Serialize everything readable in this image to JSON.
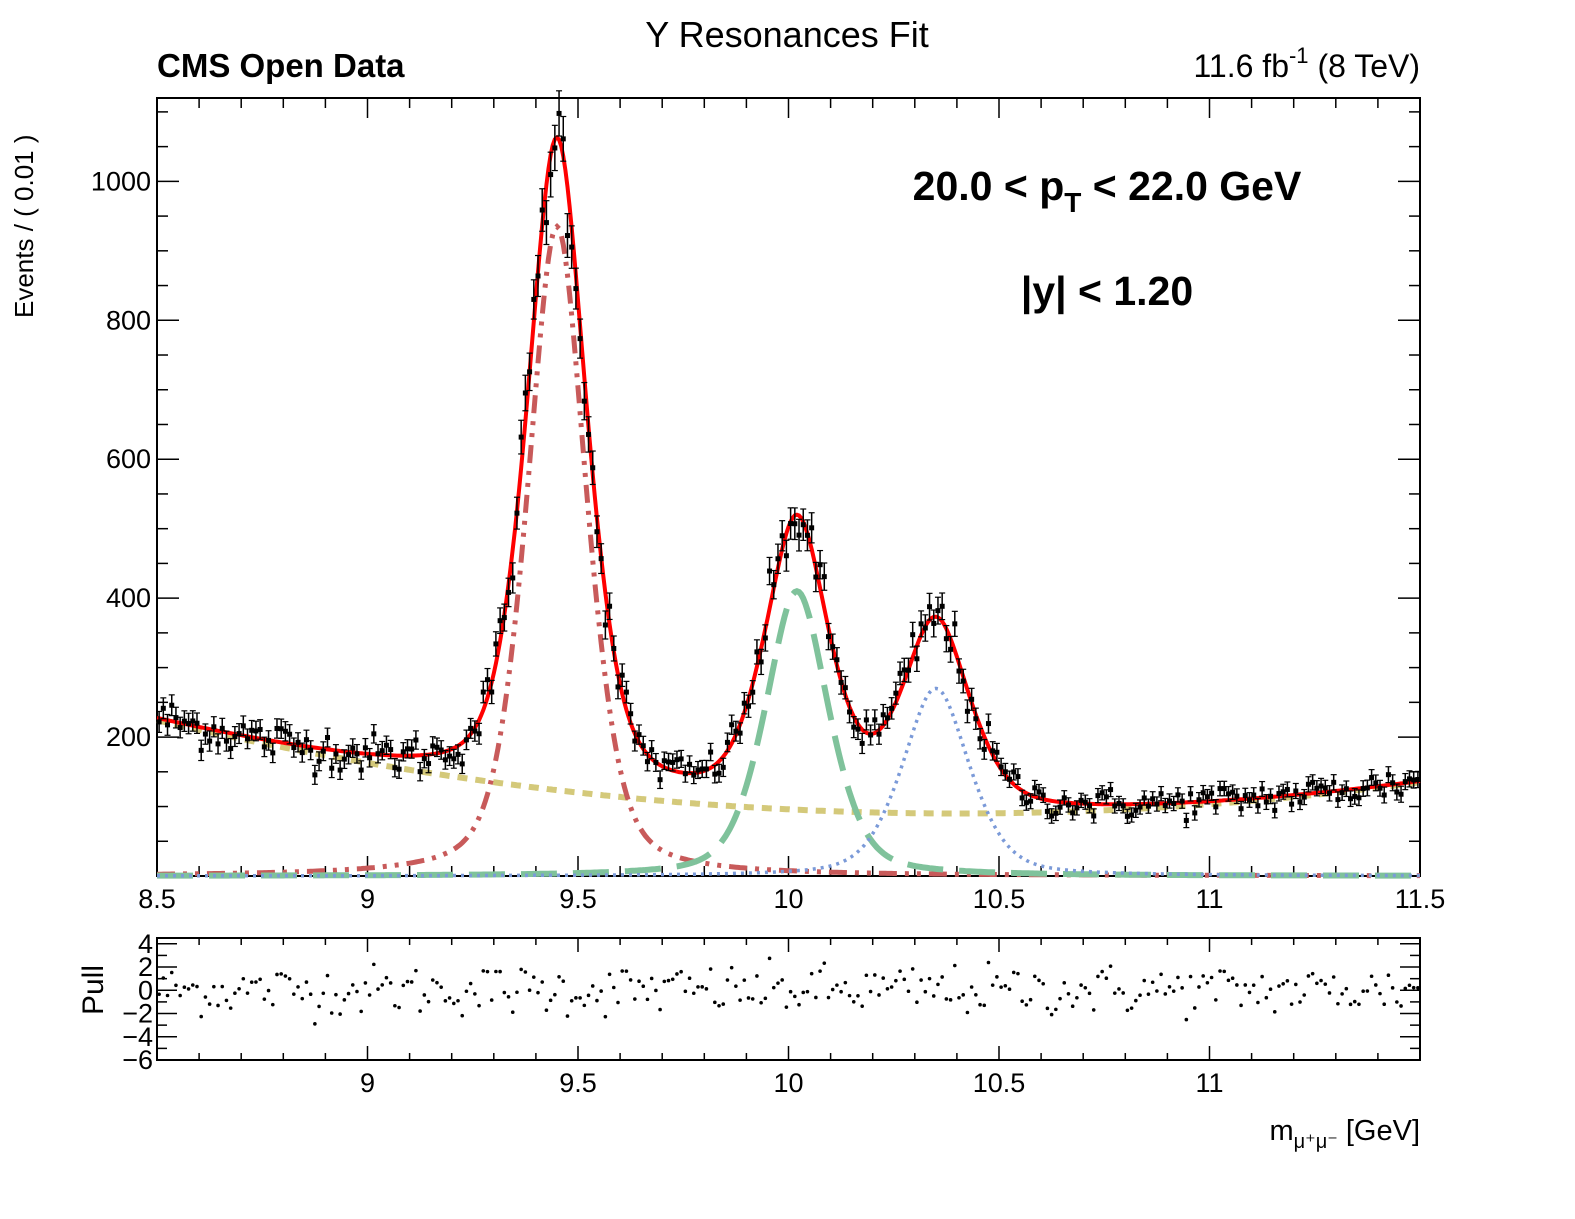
{
  "chart_data": {
    "type": "scatter",
    "title": "Υ Resonances Fit",
    "header_left": "CMS Open Data",
    "header_right": {
      "text": "11.6 fb",
      "sup": "-1",
      "suffix": " (8 TeV)"
    },
    "annotations": {
      "pt": {
        "pre": "20.0 < p",
        "sub": "T",
        "post": " < 22.0 GeV"
      },
      "y": "|y| < 1.20"
    },
    "main_panel": {
      "ylabel": "Events / ( 0.01 )",
      "xlim": [
        8.5,
        11.5
      ],
      "ylim": [
        0,
        1120
      ],
      "x_ticks": [
        "8.5",
        "9",
        "9.5",
        "10",
        "10.5",
        "11",
        "11.5"
      ],
      "y_ticks": [
        "200",
        "400",
        "600",
        "800",
        "1000"
      ],
      "components": [
        {
          "role": "total",
          "color": "#ff0000",
          "style": "solid"
        },
        {
          "role": "peak1",
          "color": "#c85a5a",
          "style": "dash-dot-dot"
        },
        {
          "role": "peak2",
          "color": "#7fc29b",
          "style": "long-dash"
        },
        {
          "role": "peak3",
          "color": "#7b9ad8",
          "style": "dotted"
        },
        {
          "role": "background",
          "color": "#d4c97a",
          "style": "short-dash"
        }
      ],
      "model": {
        "background": {
          "c0": 90,
          "c2": 45
        },
        "peaks": [
          {
            "mean": 9.45,
            "sigma": 0.075,
            "amplitude": 935
          },
          {
            "mean": 10.02,
            "sigma": 0.08,
            "amplitude": 410
          },
          {
            "mean": 10.35,
            "sigma": 0.085,
            "amplitude": 270
          }
        ]
      },
      "data_points_x_range": [
        8.505,
        11.495
      ],
      "data_points_step": 0.01
    },
    "pull_panel": {
      "ylabel": "Pull",
      "ylim": [
        -6,
        4.5
      ],
      "y_ticks": [
        "4",
        "2",
        "0",
        "−2",
        "−4",
        "−6"
      ],
      "x_ticks": [
        "9",
        "9.5",
        "10",
        "10.5",
        "11"
      ],
      "xlabel": {
        "pre": "m",
        "sub": "μ⁺μ⁻",
        "post": " [GeV]"
      }
    }
  }
}
